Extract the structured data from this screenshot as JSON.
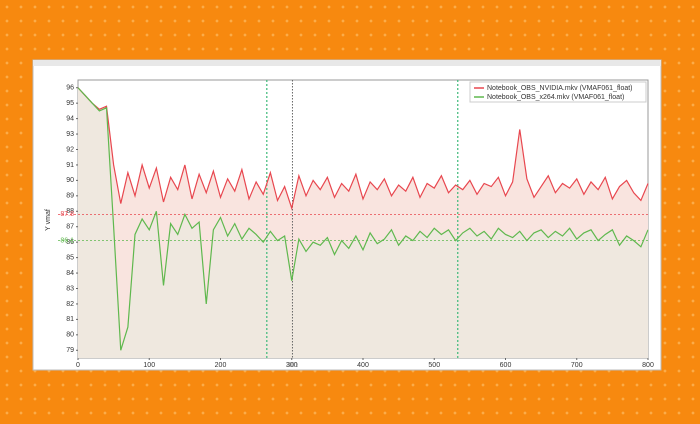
{
  "chart_data": {
    "type": "line",
    "y_label": "Y vmaf",
    "x": [
      0,
      10,
      20,
      30,
      40,
      50,
      60,
      70,
      80,
      90,
      100,
      110,
      120,
      130,
      140,
      150,
      160,
      170,
      180,
      190,
      200,
      210,
      220,
      230,
      240,
      250,
      260,
      270,
      280,
      290,
      300,
      310,
      320,
      330,
      340,
      350,
      360,
      370,
      380,
      390,
      400,
      410,
      420,
      430,
      440,
      450,
      460,
      470,
      480,
      490,
      500,
      510,
      520,
      530,
      540,
      550,
      560,
      570,
      580,
      590,
      600,
      610,
      620,
      630,
      640,
      650,
      660,
      670,
      680,
      690,
      700,
      710,
      720,
      730,
      740,
      750,
      760,
      770,
      780,
      790,
      800
    ],
    "series": [
      {
        "name": "Notebook_OBS_NVIDIA.mkv (VMAF061_float)",
        "color": "#e8474f",
        "area_color": "#f9e4df",
        "values": [
          96,
          95.5,
          95,
          94.6,
          94.8,
          91,
          88.5,
          90.5,
          89,
          91,
          89.5,
          90.8,
          88.6,
          90.2,
          89.4,
          91,
          88.8,
          90.4,
          89.2,
          90.6,
          88.9,
          90.1,
          89.3,
          90.7,
          88.8,
          89.9,
          89.1,
          90.5,
          88.7,
          89.6,
          88.2,
          90.3,
          89,
          90,
          89.4,
          90.2,
          88.9,
          89.8,
          89.3,
          90.4,
          88.8,
          89.9,
          89.4,
          90.1,
          89,
          89.7,
          89.3,
          90.2,
          88.9,
          89.8,
          89.5,
          90.3,
          89.2,
          89.7,
          89.4,
          90,
          89.1,
          89.8,
          89.6,
          90.2,
          89,
          89.9,
          93.3,
          90.1,
          88.9,
          89.6,
          90.3,
          89.2,
          89.8,
          89.5,
          90.1,
          89.1,
          89.9,
          89.4,
          90.2,
          88.8,
          89.6,
          90,
          89.2,
          88.7,
          89.8
        ]
      },
      {
        "name": "Notebook_OBS_x264.mkv (VMAF061_float)",
        "color": "#5fb84e",
        "area_color": "#efe8df",
        "values": [
          96,
          95.5,
          95,
          94.5,
          94.7,
          87,
          79,
          80.5,
          86.5,
          87.5,
          86.8,
          88,
          83.2,
          87.2,
          86.5,
          87.8,
          86.9,
          87.3,
          82,
          86.8,
          87.6,
          86.4,
          87.2,
          86.2,
          86.9,
          86.5,
          86,
          86.7,
          86.1,
          86.4,
          83.5,
          86.2,
          85.4,
          86,
          85.8,
          86.3,
          85.2,
          86.1,
          85.6,
          86.4,
          85.5,
          86.6,
          85.9,
          86.2,
          86.8,
          85.8,
          86.4,
          86.1,
          86.7,
          86.3,
          86.9,
          86.5,
          86.8,
          86.1,
          86.6,
          86.9,
          86.4,
          86.7,
          86.2,
          86.9,
          86.5,
          86.3,
          86.7,
          86.1,
          86.6,
          86.8,
          86.3,
          86.7,
          86.4,
          86.9,
          86.2,
          86.6,
          86.8,
          86.1,
          86.5,
          86.8,
          85.8,
          86.4,
          86.1,
          85.7,
          86.8
        ]
      }
    ],
    "reference_lines": [
      {
        "value": 87.8,
        "color": "#e8474f"
      },
      {
        "value": 86.1,
        "color": "#5fb84e"
      }
    ],
    "x_markers": [
      265,
      533
    ],
    "cursor_x": 301,
    "xlim": [
      0,
      800
    ],
    "xticks": [
      0,
      100,
      200,
      300,
      400,
      500,
      600,
      700,
      800
    ],
    "ylim": [
      78.5,
      96.5
    ],
    "yticks": [
      79,
      80,
      81,
      82,
      83,
      84,
      85,
      86,
      87,
      88,
      89,
      90,
      91,
      92,
      93,
      94,
      95,
      96
    ]
  }
}
